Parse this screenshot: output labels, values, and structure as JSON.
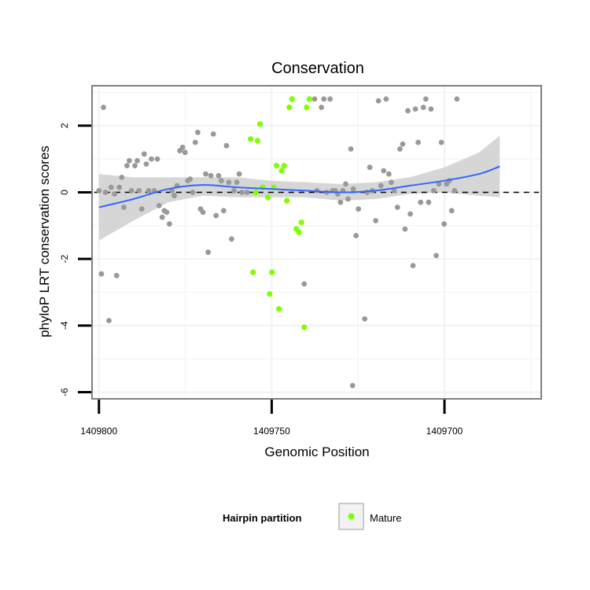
{
  "chart_data": {
    "type": "scatter",
    "title": "Conservation",
    "xlabel": "Genomic Position",
    "ylabel": "phyloP LRT conservation scores",
    "x_reversed": true,
    "xlim": [
      1409802,
      1409672
    ],
    "ylim": [
      -6.2,
      3.2
    ],
    "x_ticks": [
      1409800,
      1409750,
      1409700
    ],
    "y_ticks": [
      -6,
      -4,
      -2,
      0,
      2
    ],
    "x_tick_labels": [
      "1409800",
      "1409750",
      "1409700"
    ],
    "y_tick_labels": [
      "-6",
      "-4",
      "-2",
      "0",
      "2"
    ],
    "grid": true,
    "reference_line": 0,
    "colors": {
      "other": "#999999",
      "mature": "#7fff00",
      "smooth": "#3366ff",
      "band": "#c8c8c8",
      "panel_border": "#7f7f7f",
      "gridline": "#f2f2f2"
    },
    "legend": {
      "title": "Hairpin partition",
      "placement": "bottom",
      "entries": [
        {
          "label": "Mature",
          "color": "#7fff00"
        }
      ]
    },
    "series": [
      {
        "points": [
          [
            1409800.0,
            0.05
          ],
          [
            1409799.3,
            -2.45
          ],
          [
            1409798.7,
            2.55
          ],
          [
            1409798.1,
            0.0
          ],
          [
            1409796.5,
            0.15
          ],
          [
            1409795.5,
            -0.05
          ],
          [
            1409794.9,
            -2.5
          ],
          [
            1409794.1,
            0.15
          ],
          [
            1409793.4,
            0.45
          ],
          [
            1409792.8,
            -0.45
          ],
          [
            1409797.1,
            -3.85
          ],
          [
            1409791.9,
            0.8
          ],
          [
            1409791.2,
            0.95
          ],
          [
            1409790.6,
            0.05
          ],
          [
            1409789.6,
            0.8
          ],
          [
            1409788.9,
            0.95
          ],
          [
            1409788.4,
            0.05
          ],
          [
            1409787.6,
            -0.5
          ],
          [
            1409786.9,
            1.15
          ],
          [
            1409786.3,
            0.85
          ],
          [
            1409785.6,
            0.05
          ],
          [
            1409784.8,
            1.0
          ],
          [
            1409784.0,
            0.05
          ],
          [
            1409783.1,
            1.0
          ],
          [
            1409782.6,
            -0.4
          ],
          [
            1409781.7,
            -0.75
          ],
          [
            1409781.1,
            -0.55
          ],
          [
            1409780.4,
            -0.6
          ],
          [
            1409779.6,
            -0.95
          ],
          [
            1409778.9,
            0.05
          ],
          [
            1409778.2,
            -0.1
          ],
          [
            1409777.4,
            0.2
          ],
          [
            1409776.6,
            1.25
          ],
          [
            1409775.8,
            1.35
          ],
          [
            1409775.1,
            1.2
          ],
          [
            1409774.3,
            0.35
          ],
          [
            1409773.6,
            0.4
          ],
          [
            1409772.9,
            0.0
          ],
          [
            1409772.1,
            1.5
          ],
          [
            1409771.4,
            1.8
          ],
          [
            1409770.6,
            -0.5
          ],
          [
            1409769.9,
            -0.6
          ],
          [
            1409769.1,
            0.55
          ],
          [
            1409768.4,
            -1.8
          ],
          [
            1409767.6,
            0.5
          ],
          [
            1409766.9,
            1.75
          ],
          [
            1409766.1,
            -0.7
          ],
          [
            1409765.4,
            0.5
          ],
          [
            1409764.6,
            0.35
          ],
          [
            1409763.9,
            -0.55
          ],
          [
            1409763.1,
            1.4
          ],
          [
            1409762.4,
            0.3
          ],
          [
            1409761.6,
            -1.4
          ],
          [
            1409760.9,
            0.05
          ],
          [
            1409760.1,
            0.3
          ],
          [
            1409759.4,
            0.55
          ],
          [
            1409758.6,
            0.0
          ],
          [
            1409757.1,
            0.0
          ],
          [
            1409737.6,
            2.8
          ],
          [
            1409735.6,
            2.55
          ],
          [
            1409734.9,
            2.8
          ],
          [
            1409733.1,
            2.8
          ],
          [
            1409732.4,
            0.05
          ],
          [
            1409731.6,
            0.05
          ],
          [
            1409730.9,
            -0.05
          ],
          [
            1409730.1,
            -0.3
          ],
          [
            1409729.4,
            0.05
          ],
          [
            1409728.6,
            0.25
          ],
          [
            1409727.9,
            -0.2
          ],
          [
            1409727.1,
            1.3
          ],
          [
            1409726.4,
            0.1
          ],
          [
            1409725.6,
            -1.3
          ],
          [
            1409724.9,
            -0.5
          ],
          [
            1409723.1,
            -3.8
          ],
          [
            1409722.4,
            0.0
          ],
          [
            1409721.6,
            0.75
          ],
          [
            1409720.9,
            0.05
          ],
          [
            1409719.9,
            -0.85
          ],
          [
            1409719.1,
            2.75
          ],
          [
            1409718.4,
            0.2
          ],
          [
            1409717.6,
            0.65
          ],
          [
            1409716.9,
            2.8
          ],
          [
            1409716.1,
            0.55
          ],
          [
            1409715.4,
            0.3
          ],
          [
            1409714.6,
            0.05
          ],
          [
            1409713.6,
            -0.45
          ],
          [
            1409712.9,
            1.3
          ],
          [
            1409712.1,
            1.45
          ],
          [
            1409711.4,
            -1.1
          ],
          [
            1409710.6,
            2.45
          ],
          [
            1409709.9,
            -0.65
          ],
          [
            1409709.1,
            -2.2
          ],
          [
            1409708.4,
            2.5
          ],
          [
            1409707.6,
            1.5
          ],
          [
            1409706.9,
            -0.3
          ],
          [
            1409706.1,
            2.55
          ],
          [
            1409705.4,
            2.8
          ],
          [
            1409704.6,
            -0.3
          ],
          [
            1409703.9,
            2.5
          ],
          [
            1409703.1,
            0.05
          ],
          [
            1409702.4,
            -1.9
          ],
          [
            1409701.6,
            0.25
          ],
          [
            1409700.9,
            1.5
          ],
          [
            1409700.1,
            -0.95
          ],
          [
            1409699.4,
            0.25
          ],
          [
            1409698.6,
            0.35
          ],
          [
            1409697.9,
            -0.55
          ],
          [
            1409697.1,
            0.05
          ],
          [
            1409696.4,
            2.8
          ],
          [
            1409726.6,
            -5.8
          ],
          [
            1409740.6,
            -2.75
          ],
          [
            1409734.1,
            0.0
          ],
          [
            1409736.9,
            0.05
          ]
        ]
      },
      {
        "name": "Mature",
        "points": [
          [
            1409756.1,
            1.6
          ],
          [
            1409754.6,
            0.0
          ],
          [
            1409754.1,
            1.55
          ],
          [
            1409753.4,
            2.05
          ],
          [
            1409752.6,
            0.15
          ],
          [
            1409751.1,
            -0.15
          ],
          [
            1409749.4,
            0.15
          ],
          [
            1409748.6,
            0.8
          ],
          [
            1409747.1,
            0.65
          ],
          [
            1409746.4,
            0.8
          ],
          [
            1409745.6,
            -0.25
          ],
          [
            1409744.9,
            2.55
          ],
          [
            1409744.1,
            2.8
          ],
          [
            1409742.9,
            -1.1
          ],
          [
            1409742.1,
            -1.2
          ],
          [
            1409741.4,
            -0.9
          ],
          [
            1409740.6,
            -4.05
          ],
          [
            1409739.9,
            2.55
          ],
          [
            1409739.1,
            2.8
          ],
          [
            1409755.4,
            -2.4
          ],
          [
            1409750.6,
            -3.05
          ],
          [
            1409749.9,
            -2.4
          ],
          [
            1409747.9,
            -3.5
          ]
        ]
      }
    ],
    "smooth": {
      "x": [
        1409800,
        1409790,
        1409780,
        1409770,
        1409760,
        1409750,
        1409740,
        1409730,
        1409720,
        1409710,
        1409700,
        1409690,
        1409684
      ],
      "y": [
        -0.45,
        -0.2,
        0.1,
        0.22,
        0.15,
        0.1,
        0.05,
        0.0,
        0.05,
        0.2,
        0.35,
        0.55,
        0.78
      ],
      "lower": [
        -1.45,
        -0.85,
        -0.3,
        -0.1,
        -0.15,
        -0.15,
        -0.15,
        -0.25,
        -0.2,
        -0.05,
        0.0,
        -0.1,
        -0.15
      ],
      "upper": [
        0.55,
        0.45,
        0.45,
        0.45,
        0.45,
        0.35,
        0.3,
        0.25,
        0.3,
        0.45,
        0.75,
        1.2,
        1.7
      ]
    }
  }
}
